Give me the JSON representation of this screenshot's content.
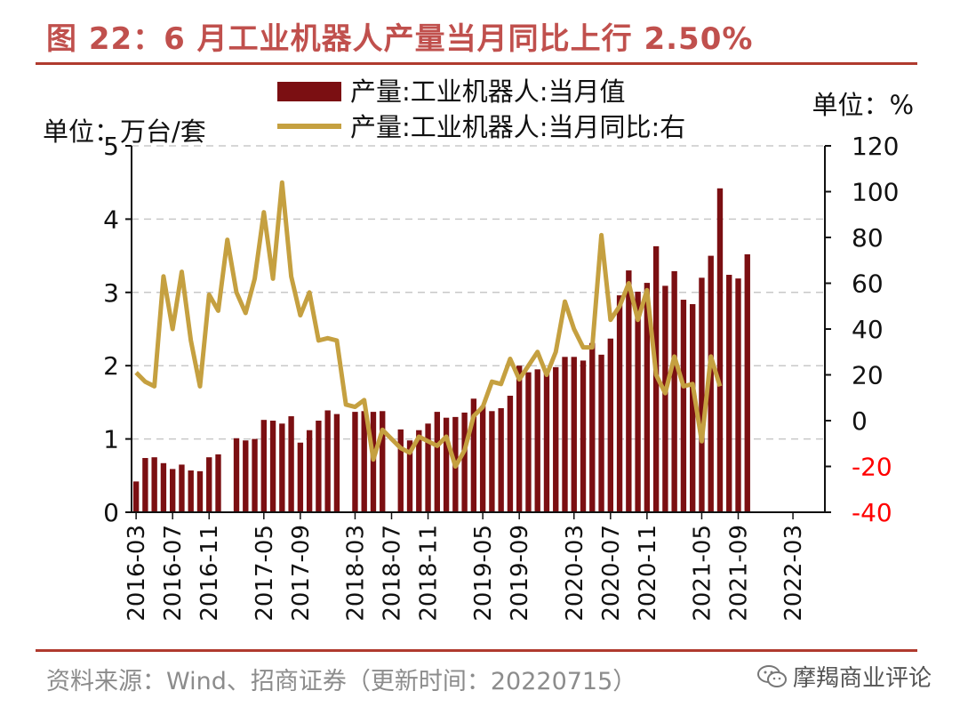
{
  "title": "图 22：6 月工业机器人产量当月同比上行 2.50%",
  "source": "资料来源：Wind、招商证券（更新时间：20220715）",
  "watermark": "摩羯商业评论",
  "chart_data": {
    "type": "bar",
    "left_unit": "单位：万台/套",
    "right_unit": "单位：%",
    "categories": [
      "2016-03",
      "2016-04",
      "2016-05",
      "2016-06",
      "2016-07",
      "2016-08",
      "2016-09",
      "2016-10",
      "2016-11",
      "2016-12",
      "2017-01",
      "2017-02",
      "2017-03",
      "2017-04",
      "2017-05",
      "2017-06",
      "2017-07",
      "2017-08",
      "2017-09",
      "2017-10",
      "2017-11",
      "2017-12",
      "2018-01",
      "2018-02",
      "2018-03",
      "2018-04",
      "2018-05",
      "2018-06",
      "2018-07",
      "2018-08",
      "2018-09",
      "2018-10",
      "2018-11",
      "2018-12",
      "2019-01",
      "2019-02",
      "2019-03",
      "2019-04",
      "2019-05",
      "2019-06",
      "2019-07",
      "2019-08",
      "2019-09",
      "2019-10",
      "2019-11",
      "2019-12",
      "2020-01",
      "2020-02",
      "2020-03",
      "2020-04",
      "2020-05",
      "2020-06",
      "2020-07",
      "2020-08",
      "2020-09",
      "2020-10",
      "2020-11",
      "2020-12",
      "2021-01",
      "2021-02",
      "2021-03",
      "2021-04",
      "2021-05",
      "2021-06",
      "2021-07",
      "2021-08",
      "2021-09",
      "2021-10",
      "2021-11",
      "2021-12",
      "2022-01",
      "2022-02",
      "2022-03",
      "2022-04",
      "2022-05",
      "2022-06"
    ],
    "x_tick_labels": [
      "2016-03",
      "2016-07",
      "2016-11",
      "2017-05",
      "2017-09",
      "2018-03",
      "2018-07",
      "2018-11",
      "2019-05",
      "2019-09",
      "2020-03",
      "2020-07",
      "2020-11",
      "2021-05",
      "2021-09",
      "2022-03"
    ],
    "series": [
      {
        "name": "产量:工业机器人:当月值",
        "type": "bar",
        "axis": "left",
        "color": "#7b0f12",
        "values": [
          0.42,
          0.74,
          0.75,
          0.67,
          0.59,
          0.65,
          0.57,
          0.56,
          0.75,
          0.79,
          null,
          1.01,
          0.98,
          1.0,
          1.26,
          1.25,
          1.21,
          1.31,
          0.95,
          1.12,
          1.25,
          1.39,
          1.34,
          null,
          1.37,
          1.38,
          1.37,
          1.38,
          null,
          1.13,
          0.98,
          1.12,
          1.21,
          1.37,
          1.29,
          1.3,
          1.36,
          1.55,
          1.45,
          1.38,
          1.42,
          1.59,
          2.0,
          1.91,
          1.95,
          1.95,
          1.98,
          2.12,
          2.12,
          2.07,
          2.31,
          2.15,
          2.37,
          2.96,
          3.3,
          3.01,
          3.13,
          3.63,
          3.09,
          3.29,
          2.9,
          2.84,
          3.2,
          3.5,
          4.42,
          3.24,
          3.19,
          3.52,
          null,
          null,
          null,
          null,
          null,
          null,
          null,
          null
        ]
      },
      {
        "name": "产量:工业机器人:当月同比:右",
        "type": "line",
        "axis": "right",
        "color": "#c5a040",
        "values": [
          21,
          17,
          15,
          63,
          40,
          65,
          35,
          15,
          55,
          48,
          79,
          56,
          47,
          62,
          91,
          62,
          104,
          63,
          46,
          56,
          35,
          36,
          35,
          7,
          6,
          9,
          -17,
          -4,
          -8,
          -12,
          -14,
          -7,
          -9,
          -11,
          -7,
          -20,
          -13,
          2,
          6,
          17,
          16,
          27,
          18,
          24,
          30,
          20,
          30,
          52,
          40,
          32,
          32,
          81,
          44,
          50,
          60,
          44,
          57,
          20,
          12,
          28,
          15,
          16,
          -9,
          28,
          15,
          null,
          null,
          null,
          null,
          null,
          null,
          null,
          null,
          null,
          null,
          null
        ]
      }
    ],
    "y_left": {
      "min": 0,
      "max": 5,
      "ticks": [
        0,
        1,
        2,
        3,
        4,
        5
      ]
    },
    "y_right": {
      "min": -40,
      "max": 120,
      "ticks": [
        120,
        100,
        80,
        60,
        40,
        20,
        0,
        -20,
        -40
      ],
      "negative_color": "#ff0000"
    },
    "grid": "dashed horizontal",
    "legend": "top"
  }
}
